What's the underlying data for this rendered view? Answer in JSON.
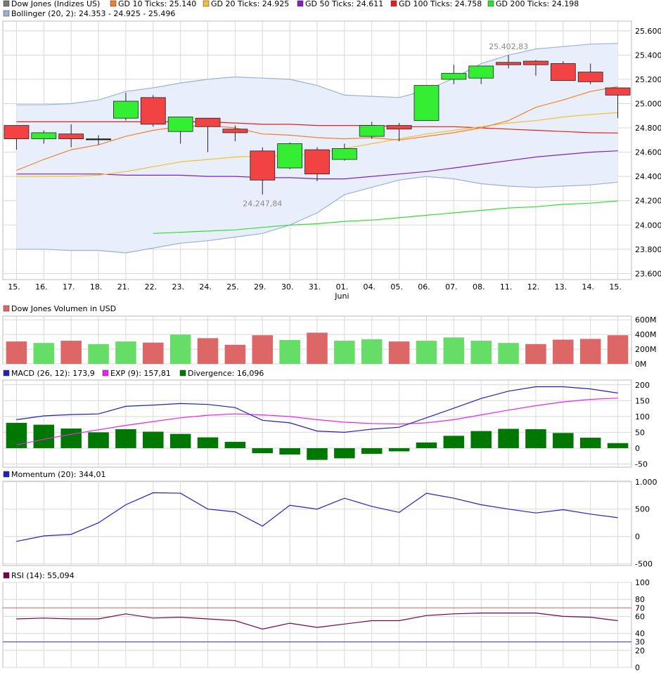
{
  "colors": {
    "up": "#33ee33",
    "down": "#f14343",
    "gd10": "#f08030",
    "gd20": "#f0c030",
    "gd50": "#8020c0",
    "gd100": "#e02020",
    "gd200": "#33dd33",
    "boll_line": "#9ab0d8",
    "boll_fill": "#e8effb",
    "vol_up": "#66dd66",
    "vol_down": "#dd6666",
    "macd": "#2020c0",
    "exp": "#ee22ee",
    "div": "#007700",
    "momentum": "#2020c0",
    "rsi": "#770055",
    "rsi_70": "#dd6666",
    "rsi_30": "#3333dd",
    "grid": "#d8d8d8"
  },
  "chart_data": [
    {
      "type": "candlestick",
      "title": "Dow Jones (Indizes US)",
      "legend": [
        {
          "key": "price",
          "label": "Dow Jones (Indizes US)",
          "color": "#777777"
        },
        {
          "key": "gd10",
          "label": "GD 10 Ticks: 25.140",
          "color": "#f08030"
        },
        {
          "key": "gd20",
          "label": "GD 20 Ticks: 24.925",
          "color": "#f0c030"
        },
        {
          "key": "gd50",
          "label": "GD 50 Ticks: 24.611",
          "color": "#8020c0"
        },
        {
          "key": "gd100",
          "label": "GD 100 Ticks: 24.758",
          "color": "#e02020"
        },
        {
          "key": "gd200",
          "label": "GD 200 Ticks: 24.198",
          "color": "#33dd33"
        },
        {
          "key": "boll",
          "label": "Bollinger (20, 2): 24.353 - 24.925 - 25.496",
          "color": "#9ab0d8"
        }
      ],
      "x": [
        "15.",
        "16.",
        "17.",
        "18.",
        "21.",
        "22.",
        "23.",
        "24.",
        "25.",
        "29.",
        "30.",
        "31.",
        "01.",
        "04.",
        "05.",
        "06.",
        "07.",
        "08.",
        "11.",
        "12.",
        "13.",
        "14.",
        "15."
      ],
      "x_sublabel": {
        "index": 12,
        "label": "Juni"
      },
      "ylim": [
        23550,
        25680
      ],
      "yticks": [
        23600,
        23800,
        24000,
        24200,
        24400,
        24600,
        24800,
        25000,
        25200,
        25400,
        25600
      ],
      "ytick_labels": [
        "23.600",
        "23.800",
        "24.000",
        "24.200",
        "24.400",
        "24.600",
        "24.800",
        "25.000",
        "25.200",
        "25.400",
        "25.600"
      ],
      "ohlc": [
        {
          "o": 24820,
          "h": 24820,
          "l": 24620,
          "c": 24710
        },
        {
          "o": 24710,
          "h": 24780,
          "l": 24670,
          "c": 24760
        },
        {
          "o": 24750,
          "h": 24830,
          "l": 24640,
          "c": 24710
        },
        {
          "o": 24710,
          "h": 24740,
          "l": 24660,
          "c": 24710
        },
        {
          "o": 24880,
          "h": 25090,
          "l": 24860,
          "c": 25020
        },
        {
          "o": 25050,
          "h": 25070,
          "l": 24810,
          "c": 24830
        },
        {
          "o": 24770,
          "h": 24890,
          "l": 24670,
          "c": 24890
        },
        {
          "o": 24880,
          "h": 24880,
          "l": 24600,
          "c": 24810
        },
        {
          "o": 24790,
          "h": 24820,
          "l": 24690,
          "c": 24760
        },
        {
          "o": 24610,
          "h": 24640,
          "l": 24250,
          "c": 24370
        },
        {
          "o": 24470,
          "h": 24680,
          "l": 24460,
          "c": 24670
        },
        {
          "o": 24620,
          "h": 24640,
          "l": 24360,
          "c": 24420
        },
        {
          "o": 24540,
          "h": 24670,
          "l": 24530,
          "c": 24630
        },
        {
          "o": 24730,
          "h": 24850,
          "l": 24710,
          "c": 24820
        },
        {
          "o": 24820,
          "h": 24840,
          "l": 24690,
          "c": 24790
        },
        {
          "o": 24860,
          "h": 25150,
          "l": 24860,
          "c": 25150
        },
        {
          "o": 25200,
          "h": 25320,
          "l": 25160,
          "c": 25250
        },
        {
          "o": 25210,
          "h": 25310,
          "l": 25160,
          "c": 25310
        },
        {
          "o": 25340,
          "h": 25400,
          "l": 25290,
          "c": 25320
        },
        {
          "o": 25350,
          "h": 25360,
          "l": 25230,
          "c": 25320
        },
        {
          "o": 25330,
          "h": 25350,
          "l": 25190,
          "c": 25190
        },
        {
          "o": 25260,
          "h": 25330,
          "l": 25160,
          "c": 25180
        },
        {
          "o": 25130,
          "h": 25130,
          "l": 24880,
          "c": 25070
        }
      ],
      "gd10": [
        24450,
        24540,
        24620,
        24660,
        24730,
        24780,
        24810,
        24820,
        24800,
        24750,
        24740,
        24720,
        24710,
        24720,
        24700,
        24730,
        24760,
        24800,
        24860,
        24970,
        25030,
        25100,
        25140
      ],
      "gd20": [
        24400,
        24400,
        24400,
        24410,
        24440,
        24480,
        24520,
        24540,
        24560,
        24570,
        24570,
        24590,
        24630,
        24670,
        24710,
        24750,
        24780,
        24810,
        24840,
        24860,
        24890,
        24910,
        24925
      ],
      "gd50": [
        24420,
        24420,
        24420,
        24420,
        24410,
        24410,
        24410,
        24400,
        24400,
        24390,
        24390,
        24380,
        24380,
        24400,
        24420,
        24440,
        24470,
        24500,
        24530,
        24560,
        24580,
        24600,
        24611
      ],
      "gd100": [
        24850,
        24850,
        24850,
        24850,
        24850,
        24850,
        24850,
        24850,
        24840,
        24830,
        24830,
        24820,
        24820,
        24820,
        24810,
        24810,
        24810,
        24800,
        24790,
        24780,
        24770,
        24760,
        24758
      ],
      "gd200": [
        null,
        null,
        null,
        null,
        null,
        23930,
        23940,
        23950,
        23960,
        23980,
        24000,
        24010,
        24030,
        24040,
        24060,
        24080,
        24100,
        24120,
        24140,
        24150,
        24170,
        24180,
        24198
      ],
      "boll_upper": [
        24990,
        24990,
        25000,
        25030,
        25100,
        25130,
        25170,
        25200,
        25220,
        25210,
        25200,
        25150,
        25070,
        25060,
        25050,
        25110,
        25210,
        25330,
        25400,
        25450,
        25470,
        25490,
        25496
      ],
      "boll_lower": [
        23800,
        23800,
        23790,
        23790,
        23770,
        23810,
        23850,
        23870,
        23900,
        23930,
        24000,
        24100,
        24250,
        24310,
        24370,
        24400,
        24380,
        24340,
        24320,
        24310,
        24320,
        24330,
        24353
      ],
      "annotations": [
        {
          "label": "25.402,83",
          "index": 18,
          "value": 25402.83,
          "pos": "above"
        },
        {
          "label": "24.247,84",
          "index": 9,
          "value": 24247.84,
          "pos": "below"
        }
      ]
    },
    {
      "type": "bar",
      "title": "Dow Jones Volumen in USD",
      "legend": [
        {
          "label": "Dow Jones Volumen in USD",
          "color": "#dd6666"
        }
      ],
      "ylim": [
        0,
        650
      ],
      "yticks": [
        0,
        200,
        400,
        600
      ],
      "ytick_labels": [
        "0M",
        "200M",
        "400M",
        "600M"
      ],
      "values": [
        305,
        285,
        315,
        270,
        305,
        290,
        400,
        350,
        260,
        390,
        325,
        425,
        315,
        335,
        305,
        315,
        360,
        315,
        285,
        270,
        330,
        340,
        390
      ],
      "up": [
        false,
        true,
        false,
        true,
        true,
        false,
        true,
        false,
        false,
        false,
        true,
        false,
        true,
        true,
        false,
        true,
        true,
        true,
        true,
        false,
        false,
        false,
        false
      ]
    },
    {
      "type": "line",
      "title": "MACD",
      "legend": [
        {
          "label": "MACD (26, 12): 173,9",
          "color": "#2020c0"
        },
        {
          "label": "EXP (9): 157,81",
          "color": "#ee22ee"
        },
        {
          "label": "Divergence: 16,096",
          "color": "#007700"
        }
      ],
      "ylim": [
        -60,
        215
      ],
      "yticks": [
        -50,
        0,
        50,
        100,
        150,
        200
      ],
      "ytick_labels": [
        "-50",
        "0",
        "50",
        "100",
        "150",
        "200"
      ],
      "macd": [
        90,
        102,
        106,
        108,
        132,
        136,
        141,
        138,
        128,
        88,
        80,
        54,
        50,
        60,
        66,
        96,
        126,
        157,
        180,
        194,
        194,
        187,
        174
      ],
      "exp": [
        10,
        28,
        44,
        58,
        72,
        84,
        96,
        104,
        108,
        105,
        100,
        90,
        82,
        78,
        76,
        80,
        90,
        105,
        120,
        134,
        146,
        154,
        158
      ],
      "divergence": [
        80,
        74,
        62,
        50,
        60,
        52,
        45,
        34,
        20,
        -16,
        -20,
        -37,
        -32,
        -18,
        -10,
        18,
        39,
        54,
        61,
        60,
        48,
        33,
        16
      ]
    },
    {
      "type": "line",
      "title": "Momentum",
      "legend": [
        {
          "label": "Momentum (20): 344,01",
          "color": "#2020c0"
        }
      ],
      "ylim": [
        -530,
        1010
      ],
      "yticks": [
        -500,
        0,
        500,
        1000
      ],
      "ytick_labels": [
        "-500",
        "0",
        "500",
        "1.000"
      ],
      "values": [
        -90,
        10,
        40,
        250,
        580,
        800,
        790,
        500,
        450,
        190,
        570,
        500,
        700,
        550,
        440,
        790,
        700,
        580,
        500,
        430,
        490,
        410,
        344
      ]
    },
    {
      "type": "line",
      "title": "RSI",
      "legend": [
        {
          "label": "RSI (14): 55,094",
          "color": "#770055"
        }
      ],
      "ylim": [
        0,
        100
      ],
      "yticks": [
        0,
        20,
        30,
        40,
        60,
        70,
        80,
        100
      ],
      "ytick_labels": [
        "0",
        "20",
        "30",
        "40",
        "60",
        "70",
        "80",
        "100"
      ],
      "values": [
        57,
        58,
        57,
        57,
        63,
        58,
        59,
        57,
        55,
        45,
        52,
        47,
        51,
        55,
        55,
        61,
        63,
        64,
        64,
        64,
        60,
        59,
        55
      ],
      "levels": [
        {
          "value": 70,
          "color": "#dd6666"
        },
        {
          "value": 30,
          "color": "#3333dd"
        }
      ]
    }
  ]
}
